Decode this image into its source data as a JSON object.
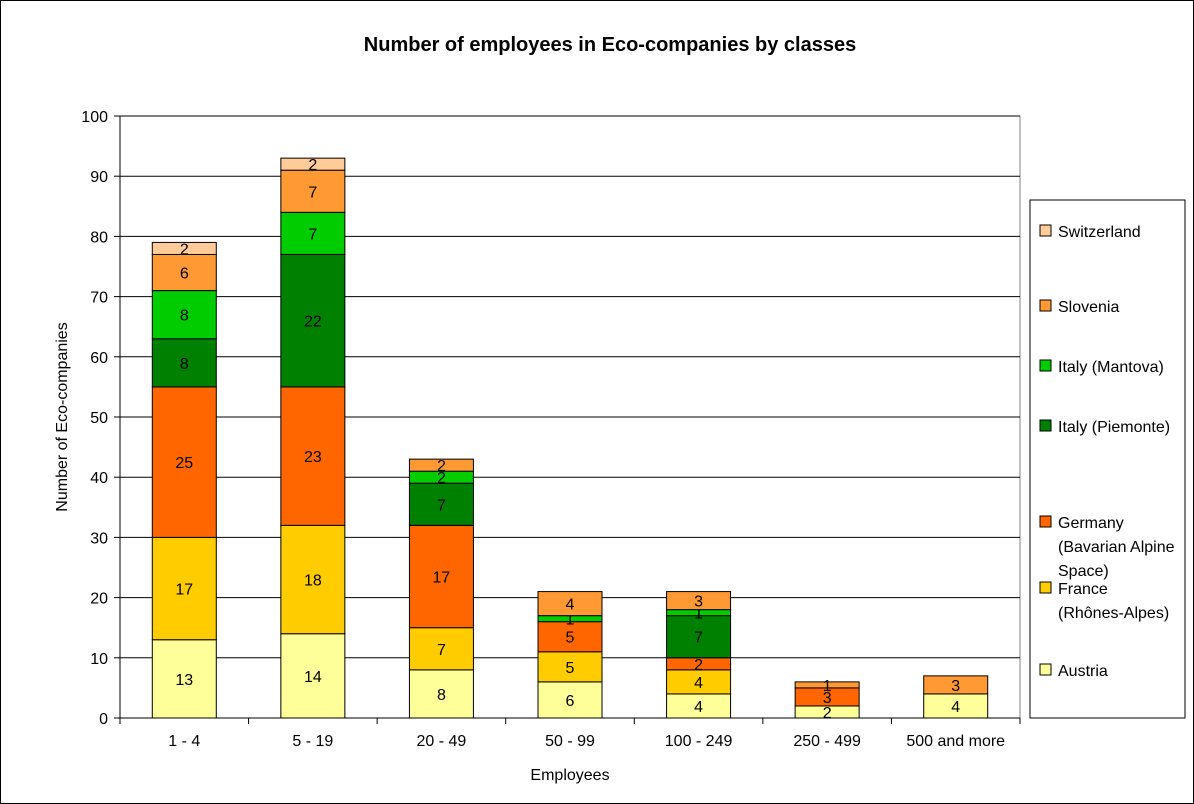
{
  "chart_data": {
    "type": "bar",
    "stacked": true,
    "title": "Number of employees in Eco-companies by classes",
    "xlabel": "Employees",
    "ylabel": "Number of Eco-companies",
    "ylim": [
      0,
      100
    ],
    "yticks": [
      0,
      10,
      20,
      30,
      40,
      50,
      60,
      70,
      80,
      90,
      100
    ],
    "grid": true,
    "legend_position": "right",
    "categories": [
      "1 - 4",
      "5 - 19",
      "20 - 49",
      "50 - 99",
      "100 - 249",
      "250 - 499",
      "500 and more"
    ],
    "series": [
      {
        "name": "Austria",
        "color": "#ffff99",
        "values": [
          13,
          14,
          8,
          6,
          4,
          2,
          4
        ]
      },
      {
        "name": "France (Rhônes-Alpes)",
        "color": "#ffcc00",
        "values": [
          17,
          18,
          7,
          5,
          4,
          0,
          0
        ]
      },
      {
        "name": "Germany (Bavarian Alpine Space)",
        "color": "#ff6600",
        "values": [
          25,
          23,
          17,
          5,
          2,
          3,
          0
        ]
      },
      {
        "name": "Italy (Piemonte)",
        "color": "#008000",
        "values": [
          8,
          22,
          7,
          0,
          7,
          0,
          0
        ]
      },
      {
        "name": "Italy (Mantova)",
        "color": "#00cc00",
        "values": [
          8,
          7,
          2,
          1,
          1,
          0,
          0
        ]
      },
      {
        "name": "Slovenia",
        "color": "#ff9933",
        "values": [
          6,
          7,
          2,
          4,
          3,
          1,
          3
        ]
      },
      {
        "name": "Switzerland",
        "color": "#ffcc99",
        "values": [
          2,
          2,
          0,
          0,
          0,
          0,
          0
        ]
      }
    ],
    "legend_entries": [
      {
        "series": 6,
        "lines": [
          "Switzerland"
        ]
      },
      {
        "series": 5,
        "lines": [
          "Slovenia"
        ]
      },
      {
        "series": 4,
        "lines": [
          "Italy (Mantova)"
        ]
      },
      {
        "series": 3,
        "lines": [
          "Italy (Piemonte)"
        ]
      },
      {
        "series": 2,
        "lines": [
          "Germany",
          "(Bavarian Alpine",
          "Space)"
        ]
      },
      {
        "series": 1,
        "lines": [
          "France",
          "(Rhônes-Alpes)"
        ]
      },
      {
        "series": 0,
        "lines": [
          "Austria"
        ]
      }
    ]
  }
}
